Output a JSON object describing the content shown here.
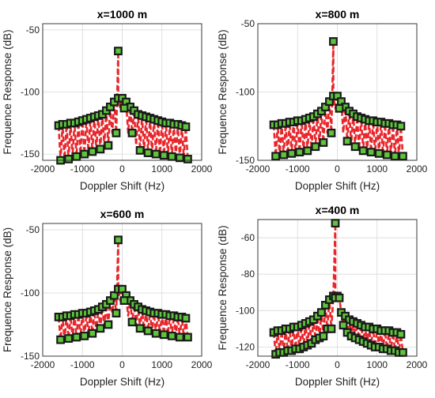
{
  "chart_data": [
    {
      "type": "line",
      "title": "x=1000 m",
      "xlabel": "Doppler Shift (Hz)",
      "ylabel": "Frequence Response (dB)",
      "xlim": [
        -2000,
        2000
      ],
      "ylim": [
        -155,
        -45
      ],
      "xticks": [
        -2000,
        -1000,
        0,
        1000,
        2000
      ],
      "yticks": [
        -150,
        -100,
        -50
      ],
      "grid": true,
      "series": [
        {
          "x": [
            -1600,
            -1500,
            -1400,
            -1300,
            -1200,
            -1100,
            -1000,
            -900,
            -800,
            -700,
            -600,
            -500,
            -400,
            -300,
            -200,
            -100,
            0,
            100,
            200,
            300,
            400,
            500,
            600,
            700,
            800,
            900,
            1000,
            1100,
            1200,
            1300,
            1400,
            1500,
            1600
          ],
          "peaks": [
            -127,
            -126,
            -126,
            -125,
            -125,
            -124,
            -123,
            -122,
            -121,
            -120,
            -119,
            -118,
            -115,
            -112,
            -108,
            -105,
            -105,
            -108,
            -112,
            -115,
            -118,
            -119,
            -120,
            -121,
            -122,
            -123,
            -124,
            -125,
            -125,
            -126,
            -126,
            -127,
            -128
          ],
          "drops": [
            -155,
            -154,
            -154,
            -152,
            -152,
            -150,
            -150,
            -148,
            -148,
            -146,
            -146,
            -143,
            -143,
            -133,
            -133,
            -113,
            -113,
            -133,
            -133,
            -143,
            -147,
            -148,
            -149,
            -149,
            -150,
            -150,
            -151,
            -151,
            -152,
            -152,
            -153,
            -153,
            -154
          ],
          "spike": {
            "x": -100,
            "y": -67
          }
        }
      ]
    },
    {
      "type": "line",
      "title": "x=800 m",
      "xlabel": "Doppler Shift (Hz)",
      "ylabel": "Frequence Response (dB)",
      "xlim": [
        -2000,
        2000
      ],
      "ylim": [
        -150,
        -50
      ],
      "xticks": [
        -2000,
        -1000,
        0,
        1000,
        2000
      ],
      "yticks": [
        -150,
        -100,
        -50
      ],
      "grid": true,
      "series": [
        {
          "x": [
            -1600,
            -1500,
            -1400,
            -1300,
            -1200,
            -1100,
            -1000,
            -900,
            -800,
            -700,
            -600,
            -500,
            -400,
            -300,
            -200,
            -100,
            0,
            100,
            200,
            300,
            400,
            500,
            600,
            700,
            800,
            900,
            1000,
            1100,
            1200,
            1300,
            1400,
            1500,
            1600
          ],
          "peaks": [
            -124,
            -124,
            -123,
            -123,
            -122,
            -122,
            -121,
            -121,
            -120,
            -119,
            -118,
            -116,
            -114,
            -111,
            -107,
            -103,
            -103,
            -107,
            -111,
            -114,
            -116,
            -118,
            -119,
            -120,
            -121,
            -121,
            -122,
            -122,
            -123,
            -123,
            -124,
            -124,
            -125
          ],
          "drops": [
            -147,
            -147,
            -146,
            -146,
            -145,
            -145,
            -144,
            -144,
            -143,
            -142,
            -140,
            -138,
            -137,
            -130,
            -130,
            -112,
            -112,
            -130,
            -136,
            -138,
            -140,
            -142,
            -143,
            -144,
            -144,
            -145,
            -145,
            -146,
            -146,
            -146,
            -147,
            -147,
            -147
          ],
          "spike": {
            "x": -100,
            "y": -63
          }
        }
      ]
    },
    {
      "type": "line",
      "title": "x=600 m",
      "xlabel": "Doppler Shift (Hz)",
      "ylabel": "Frequence Response (dB)",
      "xlim": [
        -2000,
        2000
      ],
      "ylim": [
        -150,
        -45
      ],
      "xticks": [
        -2000,
        -1000,
        0,
        1000,
        2000
      ],
      "yticks": [
        -150,
        -100,
        -50
      ],
      "grid": true,
      "series": [
        {
          "x": [
            -1600,
            -1500,
            -1400,
            -1300,
            -1200,
            -1100,
            -1000,
            -900,
            -800,
            -700,
            -600,
            -500,
            -400,
            -300,
            -200,
            -100,
            0,
            100,
            200,
            300,
            400,
            500,
            600,
            700,
            800,
            900,
            1000,
            1100,
            1200,
            1300,
            1400,
            1500,
            1600
          ],
          "peaks": [
            -119,
            -119,
            -118,
            -118,
            -117,
            -117,
            -116,
            -116,
            -115,
            -114,
            -113,
            -111,
            -109,
            -106,
            -102,
            -97,
            -97,
            -102,
            -106,
            -109,
            -111,
            -113,
            -114,
            -115,
            -116,
            -116,
            -117,
            -117,
            -118,
            -118,
            -119,
            -119,
            -120
          ],
          "drops": [
            -137,
            -137,
            -136,
            -136,
            -135,
            -135,
            -134,
            -133,
            -132,
            -131,
            -128,
            -126,
            -125,
            -116,
            -116,
            -106,
            -106,
            -118,
            -123,
            -126,
            -128,
            -129,
            -130,
            -131,
            -132,
            -132,
            -133,
            -133,
            -134,
            -134,
            -135,
            -135,
            -135
          ],
          "spike": {
            "x": -100,
            "y": -58
          }
        }
      ]
    },
    {
      "type": "line",
      "title": "x=400 m",
      "xlabel": "Doppler Shift (Hz)",
      "ylabel": "Frequence Response (dB)",
      "xlim": [
        -2000,
        2000
      ],
      "ylim": [
        -125,
        -50
      ],
      "xticks": [
        -2000,
        -1000,
        0,
        1000,
        2000
      ],
      "yticks": [
        -120,
        -100,
        -80,
        -60
      ],
      "grid": true,
      "series": [
        {
          "x": [
            -1600,
            -1500,
            -1400,
            -1300,
            -1200,
            -1100,
            -1000,
            -900,
            -800,
            -700,
            -600,
            -500,
            -400,
            -300,
            -200,
            -100,
            0,
            100,
            200,
            300,
            400,
            500,
            600,
            700,
            800,
            900,
            1000,
            1100,
            1200,
            1300,
            1400,
            1500,
            1600
          ],
          "peaks": [
            -112,
            -111,
            -111,
            -110,
            -110,
            -109,
            -109,
            -108,
            -107,
            -106,
            -105,
            -103,
            -101,
            -97,
            -94,
            -92,
            -92,
            -101,
            -103,
            -105,
            -106,
            -107,
            -108,
            -109,
            -109,
            -110,
            -110,
            -111,
            -111,
            -111,
            -112,
            -112,
            -113
          ],
          "drops": [
            -124,
            -123,
            -123,
            -122,
            -122,
            -121,
            -121,
            -120,
            -119,
            -118,
            -116,
            -115,
            -114,
            -110,
            -110,
            -93,
            -93,
            -108,
            -112,
            -114,
            -115,
            -116,
            -117,
            -118,
            -119,
            -120,
            -120,
            -121,
            -121,
            -122,
            -122,
            -123,
            -123
          ],
          "spike": {
            "x": -50,
            "y": -52
          }
        }
      ]
    }
  ]
}
